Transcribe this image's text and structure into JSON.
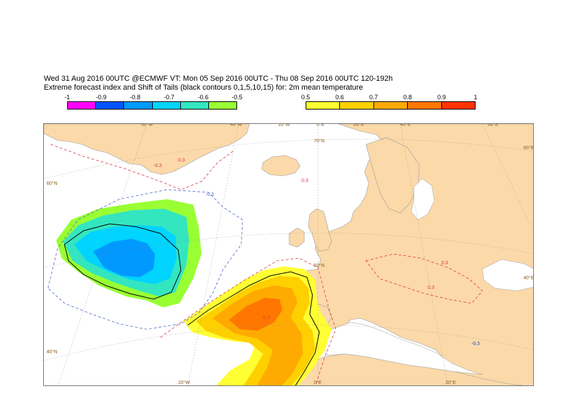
{
  "header": {
    "line1": "Wed 31 Aug 2016 00UTC @ECMWF VT: Mon 05 Sep 2016 00UTC - Thu 08 Sep 2016 00UTC  120-192h",
    "line2": "Extreme forecast index and Shift of Tails (black contours 0,1,5,10,15) for: 2m mean temperature"
  },
  "legend": {
    "negative": {
      "ticks": [
        "-1",
        "-0.9",
        "-0.8",
        "-0.7",
        "-0.6",
        "-0.5"
      ],
      "colors": [
        "#ff00ff",
        "#0055ff",
        "#0099ff",
        "#00d4ff",
        "#33e6c0",
        "#99ff33"
      ]
    },
    "positive": {
      "ticks": [
        "0.5",
        "0.6",
        "0.7",
        "0.8",
        "0.9",
        "1"
      ],
      "colors": [
        "#ffff33",
        "#ffd000",
        "#ffaa00",
        "#ff7700",
        "#ff3300"
      ]
    }
  },
  "map": {
    "land_color": "#fbd9a9",
    "sea_color": "#ffffff",
    "graticule_top": [
      "60°W",
      "40°W",
      "20°W",
      "0°E",
      "20°E",
      "40°E",
      "60°E"
    ],
    "graticule_bottom": [
      "20°W",
      "0°E",
      "20°E"
    ],
    "graticule_left": [
      "60°N",
      "40°N"
    ],
    "graticule_right": [
      "60°E",
      "40°E"
    ],
    "inner_labels": [
      "70°N",
      "50°N"
    ],
    "contour_labels": [
      "-0.3",
      "-0.3",
      "-0.3",
      "0.3",
      "0.3",
      "0.3",
      "0.3",
      "0.3",
      "-0.3"
    ]
  }
}
